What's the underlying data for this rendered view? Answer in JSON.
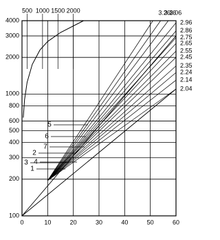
{
  "chart_data": {
    "type": "line",
    "ylog": true,
    "grid": true,
    "xlim": [
      0,
      60
    ],
    "xticks": [
      0,
      10,
      20,
      30,
      40,
      50,
      60
    ],
    "ylim": [
      100,
      4000
    ],
    "yticks": [
      100,
      200,
      300,
      400,
      500,
      600,
      800,
      1000,
      2000,
      3000,
      4000
    ],
    "x2ticks": [
      {
        "value": 2,
        "label": "500"
      },
      {
        "value": 8,
        "label": "1000"
      },
      {
        "value": 14,
        "label": "1500"
      },
      {
        "value": 20,
        "label": "2000"
      }
    ],
    "curve": {
      "x": [
        0.5,
        1,
        2,
        4,
        7,
        10,
        15,
        24
      ],
      "values": [
        640,
        900,
        1250,
        1750,
        2300,
        2700,
        3200,
        4000
      ]
    },
    "guides": [
      {
        "x": [
          0,
          60
        ],
        "values": [
          100,
          3000
        ]
      },
      {
        "x": [
          0,
          60
        ],
        "values": [
          100,
          1100
        ]
      }
    ],
    "series": [
      {
        "name": "3.26",
        "color": "#000",
        "x": [
          10,
          51
        ],
        "values": [
          195,
          4000
        ]
      },
      {
        "name": "3.16",
        "color": "#000",
        "x": [
          10,
          54
        ],
        "values": [
          195,
          4000
        ]
      },
      {
        "name": "3.06",
        "color": "#000",
        "x": [
          10,
          57
        ],
        "values": [
          195,
          4000
        ]
      },
      {
        "name": "2.96",
        "color": "#000",
        "x": [
          10,
          60
        ],
        "values": [
          195,
          3850
        ]
      },
      {
        "name": "2.86",
        "color": "#000",
        "x": [
          10,
          60
        ],
        "values": [
          195,
          3300
        ]
      },
      {
        "name": "2.75",
        "color": "#000",
        "x": [
          10,
          60
        ],
        "values": [
          195,
          2900
        ]
      },
      {
        "name": "2.65",
        "color": "#000",
        "x": [
          10,
          60
        ],
        "values": [
          195,
          2600
        ]
      },
      {
        "name": "2.55",
        "color": "#000",
        "x": [
          10,
          60
        ],
        "values": [
          195,
          2250
        ]
      },
      {
        "name": "2.45",
        "color": "#000",
        "x": [
          10,
          60
        ],
        "values": [
          195,
          2000
        ]
      },
      {
        "name": "2.35",
        "color": "#000",
        "x": [
          10,
          60
        ],
        "values": [
          195,
          1700
        ]
      },
      {
        "name": "2.24",
        "color": "#000",
        "x": [
          10,
          60
        ],
        "values": [
          195,
          1500
        ]
      },
      {
        "name": "2.14",
        "color": "#000",
        "x": [
          10,
          60
        ],
        "values": [
          195,
          1300
        ]
      },
      {
        "name": "2.04",
        "color": "#000",
        "x": [
          10,
          60
        ],
        "values": [
          195,
          1100
        ]
      }
    ],
    "annotations": [
      "5",
      "6",
      "7",
      "2",
      "4",
      "3",
      "1"
    ]
  }
}
